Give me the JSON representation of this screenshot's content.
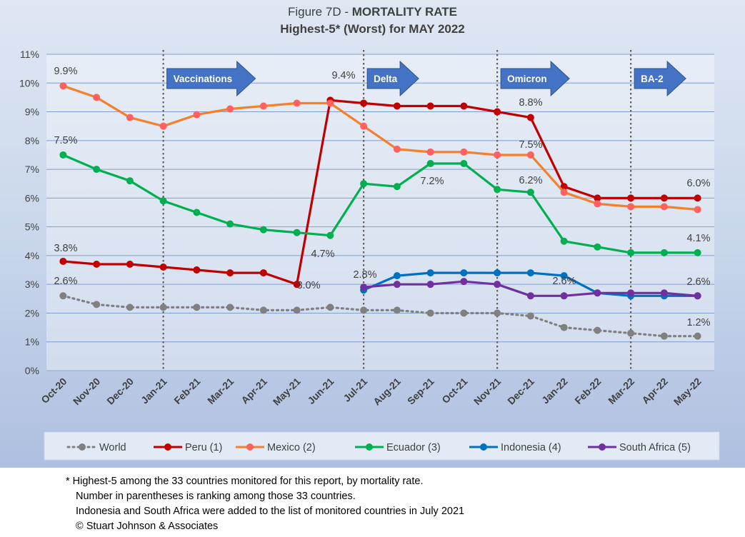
{
  "title": {
    "line1_prefix": "Figure 7D  - ",
    "line1_bold": "MORTALITY RATE",
    "line2": "Highest-5* (Worst) for MAY 2022"
  },
  "footnotes": [
    "* Highest-5 among the 33 countries monitored for this report, by mortality rate.",
    "Number in parentheses is ranking among those 33 countries.",
    "Indonesia and South Africa were added to the list of monitored countries in July 2021",
    "© Stuart Johnson & Associates"
  ],
  "chart_data": {
    "type": "line",
    "title": "Figure 7D - MORTALITY RATE",
    "subtitle": "Highest-5* (Worst) for MAY 2022",
    "ylim": [
      0,
      11
    ],
    "yticks": [
      "0%",
      "1%",
      "2%",
      "3%",
      "4%",
      "5%",
      "6%",
      "7%",
      "8%",
      "9%",
      "10%",
      "11%"
    ],
    "grid": true,
    "legend": "bottom",
    "categories": [
      "Oct-20",
      "Nov-20",
      "Dec-20",
      "Jan-21",
      "Feb-21",
      "Mar-21",
      "Apr-21",
      "May-21",
      "Jun-21",
      "Jul-21",
      "Aug-21",
      "Sep-21",
      "Oct-21",
      "Nov-21",
      "Dec-21",
      "Jan-22",
      "Feb-22",
      "Mar-22",
      "Apr-22",
      "May-22"
    ],
    "series": [
      {
        "name": "World",
        "color": "#808080",
        "dotted": true,
        "values": [
          2.6,
          2.3,
          2.2,
          2.2,
          2.2,
          2.2,
          2.1,
          2.1,
          2.2,
          2.1,
          2.1,
          2.0,
          2.0,
          2.0,
          1.9,
          1.5,
          1.4,
          1.3,
          1.2,
          1.2
        ]
      },
      {
        "name": "Peru (1)",
        "color": "#c00000",
        "values": [
          3.8,
          3.7,
          3.7,
          3.6,
          3.5,
          3.4,
          3.4,
          3.0,
          9.4,
          9.3,
          9.2,
          9.2,
          9.2,
          9.0,
          8.8,
          6.4,
          6.0,
          6.0,
          6.0,
          6.0
        ]
      },
      {
        "name": "Mexico (2)",
        "color": "#f57f2a",
        "marker": "#ff6060",
        "values": [
          9.9,
          9.5,
          8.8,
          8.5,
          8.9,
          9.1,
          9.2,
          9.3,
          9.3,
          8.5,
          7.7,
          7.6,
          7.6,
          7.5,
          7.5,
          6.2,
          5.8,
          5.7,
          5.7,
          5.6
        ]
      },
      {
        "name": "Ecuador (3)",
        "color": "#00b050",
        "values": [
          7.5,
          7.0,
          6.6,
          5.9,
          5.5,
          5.1,
          4.9,
          4.8,
          4.7,
          6.5,
          6.4,
          7.2,
          7.2,
          6.3,
          6.2,
          4.5,
          4.3,
          4.1,
          4.1,
          4.1
        ]
      },
      {
        "name": "Indonesia (4)",
        "color": "#0070c0",
        "values": [
          null,
          null,
          null,
          null,
          null,
          null,
          null,
          null,
          null,
          2.8,
          3.3,
          3.4,
          3.4,
          3.4,
          3.4,
          3.3,
          2.7,
          2.6,
          2.6,
          2.6
        ]
      },
      {
        "name": "South Africa (5)",
        "color": "#7030a0",
        "values": [
          null,
          null,
          null,
          null,
          null,
          null,
          null,
          null,
          null,
          2.9,
          3.0,
          3.0,
          3.1,
          3.0,
          2.6,
          2.6,
          2.7,
          2.7,
          2.7,
          2.6
        ]
      }
    ],
    "data_labels": [
      {
        "text": "9.9%",
        "series": 2,
        "index": 0
      },
      {
        "text": "7.5%",
        "series": 3,
        "index": 0
      },
      {
        "text": "3.8%",
        "series": 1,
        "index": 0
      },
      {
        "text": "2.6%",
        "series": 0,
        "index": 0
      },
      {
        "text": "9.4%",
        "series": 1,
        "index": 8
      },
      {
        "text": "3.0%",
        "series": 1,
        "index": 7
      },
      {
        "text": "4.7%",
        "series": 3,
        "index": 8
      },
      {
        "text": "2.8%",
        "series": 4,
        "index": 9
      },
      {
        "text": "7.2%",
        "series": 3,
        "index": 11
      },
      {
        "text": "8.8%",
        "series": 1,
        "index": 14
      },
      {
        "text": "7.5%",
        "series": 2,
        "index": 14
      },
      {
        "text": "6.2%",
        "series": 3,
        "index": 14
      },
      {
        "text": "2.6%",
        "series": 5,
        "index": 15
      },
      {
        "text": "6.0%",
        "series": 1,
        "index": 19
      },
      {
        "text": "4.1%",
        "series": 3,
        "index": 19
      },
      {
        "text": "2.6%",
        "series": 4,
        "index": 19
      },
      {
        "text": "1.2%",
        "series": 0,
        "index": 19
      }
    ],
    "events": [
      {
        "label": "Vaccinations",
        "at": "Jan-21"
      },
      {
        "label": "Delta",
        "at": "Jul-21"
      },
      {
        "label": "Omicron",
        "at": "Nov-21"
      },
      {
        "label": "BA-2",
        "at": "Mar-22"
      }
    ]
  }
}
